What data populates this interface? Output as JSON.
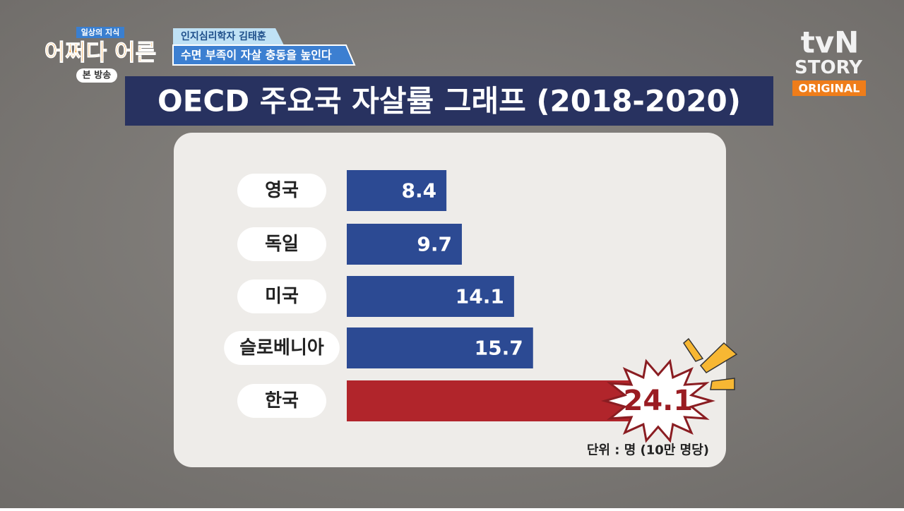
{
  "show": {
    "series_label": "일상의 지식",
    "title": "어쩌다 어른",
    "badge": "본 방송"
  },
  "caption": {
    "speaker": "인지심리학자 김태훈",
    "headline": "수면 부족이 자살 충동을 높인다"
  },
  "channel": {
    "brand": "tvN",
    "sub": "STORY",
    "tag": "ORIGINAL"
  },
  "chart_data": {
    "type": "hbar",
    "title": "OECD 주요국 자살률 그래프 (2018-2020)",
    "categories": [
      "영국",
      "독일",
      "미국",
      "슬로베니아",
      "한국"
    ],
    "values": [
      8.4,
      9.7,
      14.1,
      15.7,
      24.1
    ],
    "colors": [
      "#2c4a93",
      "#2c4a93",
      "#2c4a93",
      "#2c4a93",
      "#b1252b"
    ],
    "note": "단위 : 명 (10만 명당)"
  }
}
